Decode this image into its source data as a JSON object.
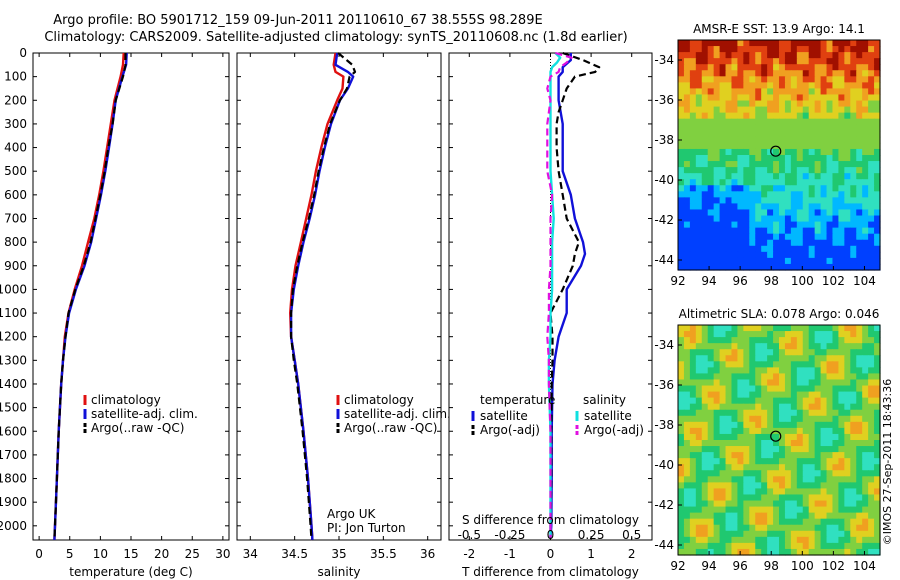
{
  "header": {
    "line1": "Argo profile: BO 5901712_159 09-Jun-2011 20110610_67 38.555S 98.289E",
    "line2": "Climatology: CARS2009. Satellite-adjusted climatology: synTS_20110608.nc (1.8d earlier)"
  },
  "colors": {
    "climatology": "#e01010",
    "satellite": "#1010d8",
    "argo": "#000000",
    "sal_satellite": "#10e0e0",
    "sal_argo": "#e010e0"
  },
  "chart_data": [
    {
      "type": "line",
      "panel": "temperature",
      "xlabel": "temperature (deg C)",
      "xlim": [
        -1,
        31
      ],
      "xticks": [
        "0",
        "5",
        "10",
        "15",
        "20",
        "25",
        "30"
      ],
      "ylim": [
        2060,
        0
      ],
      "yticks": [
        "0",
        "100",
        "200",
        "300",
        "400",
        "500",
        "600",
        "700",
        "800",
        "900",
        "1000",
        "1100",
        "1200",
        "1300",
        "1400",
        "1500",
        "1600",
        "1700",
        "1800",
        "1900",
        "2000"
      ],
      "legend": [
        "climatology",
        "satellite-adj. clim.",
        "Argo(..raw -QC)"
      ],
      "series": [
        {
          "name": "climatology",
          "pressure": [
            0,
            50,
            100,
            200,
            300,
            400,
            500,
            600,
            700,
            800,
            900,
            1000,
            1100,
            1200,
            1300,
            1400,
            1600,
            1800,
            2000,
            2060
          ],
          "values": [
            13.8,
            13.7,
            13.3,
            12.3,
            11.7,
            11.1,
            10.5,
            9.8,
            9.0,
            8.0,
            7.0,
            5.8,
            4.8,
            4.2,
            3.9,
            3.6,
            3.2,
            2.9,
            2.6,
            2.5
          ]
        },
        {
          "name": "satellite-adj. clim.",
          "pressure": [
            0,
            50,
            100,
            200,
            300,
            400,
            500,
            600,
            700,
            800,
            900,
            1000,
            1100,
            1200,
            1300,
            1400,
            1600,
            1800,
            2000,
            2060
          ],
          "values": [
            14.3,
            14.2,
            13.6,
            12.5,
            12.0,
            11.4,
            10.8,
            10.1,
            9.3,
            8.5,
            7.4,
            6.0,
            4.9,
            4.3,
            3.9,
            3.6,
            3.2,
            2.9,
            2.6,
            2.5
          ]
        },
        {
          "name": "Argo(..raw -QC)",
          "pressure": [
            0,
            50,
            100,
            200,
            300,
            400,
            500,
            600,
            700,
            800,
            900,
            1000,
            1100,
            1200,
            1300,
            1400,
            1600,
            1800,
            2000,
            2060
          ],
          "values": [
            14.1,
            14.1,
            13.7,
            12.5,
            12.0,
            11.3,
            10.7,
            10.0,
            9.2,
            8.4,
            7.3,
            5.9,
            4.8,
            4.3,
            3.9,
            3.6,
            3.2,
            2.9,
            2.6,
            2.5
          ]
        }
      ]
    },
    {
      "type": "line",
      "panel": "salinity",
      "xlabel": "salinity",
      "xlim": [
        33.85,
        36.15
      ],
      "xticks": [
        "34",
        "34.5",
        "35",
        "35.5",
        "36"
      ],
      "ylim": [
        2060,
        0
      ],
      "legend": [
        "climatology",
        "satellite-adj. clim.",
        "Argo(..raw -QC)"
      ],
      "annotation": [
        "Argo UK",
        "PI: Jon Turton"
      ],
      "series": [
        {
          "name": "climatology",
          "pressure": [
            0,
            50,
            80,
            100,
            150,
            200,
            300,
            400,
            500,
            600,
            700,
            800,
            900,
            1000,
            1100,
            1200,
            1300,
            1400,
            1600,
            1800,
            2000,
            2060
          ],
          "values": [
            34.96,
            34.94,
            34.96,
            35.05,
            35.04,
            34.98,
            34.87,
            34.8,
            34.74,
            34.69,
            34.63,
            34.57,
            34.51,
            34.47,
            34.45,
            34.46,
            34.5,
            34.54,
            34.6,
            34.65,
            34.69,
            34.7
          ]
        },
        {
          "name": "satellite-adj. clim.",
          "pressure": [
            0,
            50,
            80,
            100,
            150,
            200,
            300,
            400,
            500,
            600,
            700,
            800,
            900,
            1000,
            1100,
            1200,
            1300,
            1400,
            1600,
            1800,
            2000,
            2060
          ],
          "values": [
            34.98,
            34.96,
            35.1,
            35.16,
            35.1,
            35.01,
            34.91,
            34.84,
            34.78,
            34.73,
            34.67,
            34.6,
            34.54,
            34.49,
            34.46,
            34.46,
            34.5,
            34.54,
            34.6,
            34.65,
            34.69,
            34.7
          ]
        },
        {
          "name": "Argo(..raw -QC)",
          "pressure": [
            0,
            50,
            80,
            100,
            150,
            200,
            300,
            400,
            500,
            600,
            700,
            800,
            900,
            1000,
            1100,
            1200,
            1300,
            1400,
            1600,
            1800,
            2000,
            2060
          ],
          "values": [
            34.99,
            35.15,
            35.18,
            35.12,
            35.09,
            35.01,
            34.9,
            34.83,
            34.77,
            34.72,
            34.66,
            34.59,
            34.53,
            34.48,
            34.46,
            34.46,
            34.49,
            34.53,
            34.59,
            34.64,
            34.68,
            34.69
          ]
        }
      ]
    },
    {
      "type": "line",
      "panel": "difference",
      "xlabel": "T difference from climatology",
      "xlim": [
        -2.5,
        2.5
      ],
      "xticks": [
        "-2",
        "-1",
        "0",
        "1",
        "2"
      ],
      "x2label": "S difference from climatology",
      "x2ticks": [
        "-0.5",
        "-0.25",
        "0",
        "0.25",
        "0.5"
      ],
      "ylim": [
        2060,
        0
      ],
      "legend_title_left": "temperature",
      "legend_title_right": "salinity",
      "legend": [
        "satellite",
        "Argo(-adj)",
        "satellite",
        "Argo(-adj)"
      ],
      "series": [
        {
          "name": "satellite",
          "pressure": [
            0,
            30,
            60,
            80,
            100,
            150,
            200,
            300,
            400,
            500,
            600,
            700,
            800,
            850,
            900,
            1000,
            1100,
            1200,
            1300,
            1400,
            1600,
            1800,
            2000,
            2050
          ],
          "values": [
            0.5,
            0.5,
            0.3,
            0.3,
            0.2,
            0.2,
            0.2,
            0.3,
            0.3,
            0.3,
            0.5,
            0.6,
            0.8,
            0.85,
            0.75,
            0.4,
            0.4,
            0.2,
            0.1,
            0.05,
            0.03,
            0.03,
            0.02,
            0.0
          ]
        },
        {
          "name": "Argo(-adj)",
          "pressure": [
            0,
            30,
            60,
            80,
            100,
            150,
            200,
            250,
            300,
            400,
            500,
            600,
            700,
            800,
            850,
            900,
            1000,
            1100,
            1200,
            1300,
            1400,
            1600,
            1800,
            2000,
            2050
          ],
          "values": [
            0.3,
            0.8,
            1.2,
            1.1,
            0.6,
            0.4,
            0.3,
            0.2,
            0.15,
            0.15,
            0.2,
            0.3,
            0.4,
            0.7,
            0.6,
            0.55,
            0.3,
            0.0,
            0.05,
            0.05,
            0.03,
            0.02,
            0.02,
            0.0,
            0.0
          ]
        },
        {
          "name": "satellite",
          "pressure": [
            0,
            20,
            40,
            60,
            80,
            100,
            200,
            300,
            400,
            500,
            600,
            700,
            800,
            900,
            1000,
            1100,
            1200,
            1300,
            1400,
            1600,
            1800,
            2000,
            2050
          ],
          "values": [
            0.03,
            0.06,
            0.04,
            0.01,
            0.0,
            0.0,
            0.0,
            0.0,
            0.0,
            0.0,
            0.01,
            0.02,
            0.01,
            0.01,
            0.01,
            0.0,
            0.0,
            -0.01,
            -0.01,
            0.0,
            0.0,
            0.0,
            0.0
          ]
        },
        {
          "name": "Argo(-adj)",
          "pressure": [
            0,
            20,
            40,
            60,
            80,
            100,
            150,
            200,
            300,
            400,
            500,
            600,
            700,
            800,
            900,
            1000,
            1100,
            1200,
            1300,
            1400,
            1600,
            1800,
            2000,
            2050
          ],
          "values": [
            0.03,
            0.13,
            0.1,
            0.06,
            0.05,
            0.0,
            -0.02,
            0.0,
            -0.02,
            -0.02,
            -0.02,
            0.01,
            0.0,
            0.0,
            0.0,
            -0.01,
            -0.01,
            -0.02,
            -0.01,
            -0.01,
            0.0,
            0.0,
            0.0,
            0.0
          ]
        }
      ]
    },
    {
      "type": "heatmap",
      "panel": "sst",
      "title": "AMSR-E SST: 13.9 Argo: 14.1",
      "xlim": [
        92,
        105
      ],
      "ylim": [
        -44.5,
        -33
      ],
      "xticks": [
        "92",
        "94",
        "96",
        "98",
        "100",
        "102",
        "104"
      ],
      "yticks": [
        "-34",
        "-36",
        "-38",
        "-40",
        "-42",
        "-44"
      ],
      "marker": {
        "lon": 98.29,
        "lat": -38.56
      }
    },
    {
      "type": "heatmap",
      "panel": "sla",
      "title": "Altimetric SLA: 0.078 Argo: 0.046",
      "xlim": [
        92,
        105
      ],
      "ylim": [
        -44.5,
        -33
      ],
      "xticks": [
        "92",
        "94",
        "96",
        "98",
        "100",
        "102",
        "104"
      ],
      "yticks": [
        "-34",
        "-36",
        "-38",
        "-40",
        "-42",
        "-44"
      ],
      "marker": {
        "lon": 98.29,
        "lat": -38.56
      }
    }
  ],
  "footer": {
    "stamp": "©IMOS 27-Sep-2011 18:43:36"
  }
}
